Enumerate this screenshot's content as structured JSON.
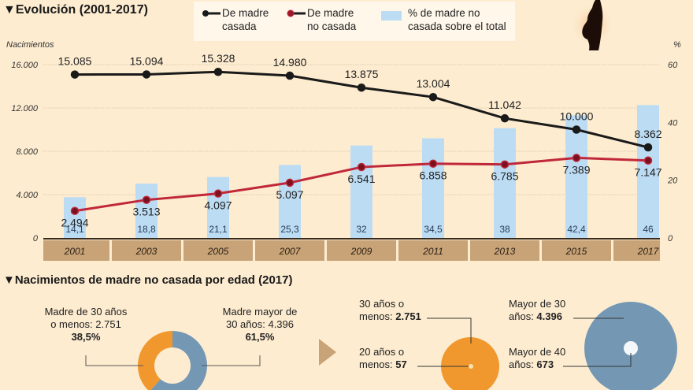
{
  "titles": {
    "main": "Evolución (2001-2017)",
    "second": "Nacimientos de madre no casada por edad (2017)",
    "marker": "▼"
  },
  "legend": {
    "married": "De madre casada",
    "married_l1": "De madre",
    "married_l2": "casada",
    "unmarried_l1": "De madre",
    "unmarried_l2": "no casada",
    "pct_l1": "% de madre no",
    "pct_l2": "casada sobre el total"
  },
  "colors": {
    "married": "#1a1a1a",
    "unmarried": "#c0283a",
    "unmarried_dot": "#7a1020",
    "bar": "#bcdcf3",
    "band": "#c8a377",
    "orange": "#f0982e",
    "blue": "#7498b4",
    "background": "#fdecd0"
  },
  "chart_data": {
    "type": "bar+line",
    "title": "Evolución (2001-2017)",
    "ylabel_left": "Nacimientos",
    "ylabel_right": "%",
    "ylim_left": [
      0,
      16000
    ],
    "ylim_right": [
      0,
      60
    ],
    "left_ticks": [
      "0",
      "4.000",
      "8.000",
      "12.000",
      "16.000"
    ],
    "left_tick_values": [
      0,
      4000,
      8000,
      12000,
      16000
    ],
    "right_ticks": [
      "0",
      "20",
      "40",
      "60"
    ],
    "right_tick_values": [
      0,
      20,
      40,
      60
    ],
    "grid": true,
    "categories": [
      "2001",
      "2003",
      "2005",
      "2007",
      "2009",
      "2011",
      "2013",
      "2015",
      "2017"
    ],
    "series": [
      {
        "name": "De madre casada",
        "type": "line",
        "axis": "left",
        "values": [
          15085,
          15094,
          15328,
          14980,
          13875,
          13004,
          11042,
          10000,
          8362
        ],
        "labels": [
          "15.085",
          "15.094",
          "15.328",
          "14.980",
          "13.875",
          "13.004",
          "11.042",
          "10.000",
          "8.362"
        ]
      },
      {
        "name": "De madre no casada",
        "type": "line",
        "axis": "left",
        "values": [
          2494,
          3513,
          4097,
          5097,
          6541,
          6858,
          6785,
          7389,
          7147
        ],
        "labels": [
          "2.494",
          "3.513",
          "4.097",
          "5.097",
          "6.541",
          "6.858",
          "6.785",
          "7.389",
          "7.147"
        ]
      },
      {
        "name": "% de madre no casada sobre el total",
        "type": "bar",
        "axis": "right",
        "values": [
          14.1,
          18.8,
          21.1,
          25.3,
          32,
          34.5,
          38,
          42.4,
          46
        ],
        "labels": [
          "14,1",
          "18,8",
          "21,1",
          "25,3",
          "32",
          "34,5",
          "38",
          "42,4",
          "46"
        ]
      }
    ]
  },
  "age_breakdown": {
    "donut": {
      "left_l1": "Madre de 30 años",
      "left_l2": "o menos: 2.751",
      "left_pct": "38,5%",
      "right_l1": "Madre mayor de",
      "right_l2": "30 años: 4.396",
      "right_pct": "61,5%",
      "share_30_or_less": 38.5,
      "share_over_30": 61.5
    },
    "bubbles": {
      "a_l1": "30 años o",
      "a_l2_prefix": "menos: ",
      "a_value": "2.751",
      "b_l1": "20 años o",
      "b_l2_prefix": "menos: ",
      "b_value": "57",
      "c_l1": "Mayor de 30",
      "c_l2_prefix": "años: ",
      "c_value": "4.396",
      "d_l1": "Mayor de 40",
      "d_l2_prefix": "años: ",
      "d_value": "673"
    }
  }
}
